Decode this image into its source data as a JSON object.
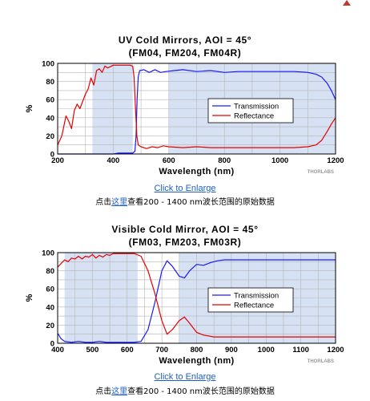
{
  "page": {
    "top_arrow_icon": "triangle-up-icon",
    "accent_color": "#c0392b"
  },
  "charts": [
    {
      "title": "UV Cold Mirrors, AOI = 45°",
      "subtitle": "(FM04, FM204, FM04R)",
      "enlarge_link": "Click to Enlarge",
      "raw_prefix": "点击",
      "raw_link": "这里",
      "raw_suffix": "查看200 - 1400 nm波长范围的原始数据",
      "watermark": "THORLABS"
    },
    {
      "title": "Visible Cold Mirror, AOI = 45°",
      "subtitle": "(FM03, FM203, FM03R)",
      "enlarge_link": "Click to Enlarge",
      "raw_prefix": "点击",
      "raw_link": "这里",
      "raw_suffix": "查看200 - 1400 nm波长范围的原始数据",
      "watermark": "THORLABS"
    }
  ],
  "chart_data": [
    {
      "type": "line",
      "title": "UV Cold Mirrors, AOI = 45°",
      "subtitle": "(FM04, FM204, FM04R)",
      "xlabel": "Wavelength (nm)",
      "ylabel": "%",
      "xlim": [
        200,
        1200
      ],
      "ylim": [
        0,
        100
      ],
      "xticks": [
        200,
        400,
        600,
        800,
        1000,
        1200
      ],
      "yticks": [
        0,
        20,
        40,
        60,
        80,
        100
      ],
      "grid": true,
      "legend_position": "center-right",
      "shaded_bands": [
        [
          325,
          470
        ],
        [
          600,
          1200
        ]
      ],
      "series": [
        {
          "name": "Transmission",
          "color": "#1a1aff",
          "points": [
            [
              200,
              0
            ],
            [
              300,
              0
            ],
            [
              350,
              0
            ],
            [
              400,
              0
            ],
            [
              420,
              1
            ],
            [
              450,
              1
            ],
            [
              470,
              1
            ],
            [
              478,
              3
            ],
            [
              482,
              20
            ],
            [
              486,
              60
            ],
            [
              490,
              85
            ],
            [
              495,
              92
            ],
            [
              510,
              93
            ],
            [
              530,
              90
            ],
            [
              550,
              93
            ],
            [
              570,
              90
            ],
            [
              590,
              91
            ],
            [
              620,
              92
            ],
            [
              650,
              93
            ],
            [
              700,
              91
            ],
            [
              750,
              92
            ],
            [
              800,
              90
            ],
            [
              850,
              91
            ],
            [
              900,
              91
            ],
            [
              950,
              91
            ],
            [
              1000,
              91
            ],
            [
              1050,
              91
            ],
            [
              1100,
              90
            ],
            [
              1130,
              88
            ],
            [
              1150,
              85
            ],
            [
              1170,
              78
            ],
            [
              1185,
              70
            ],
            [
              1200,
              60
            ]
          ]
        },
        {
          "name": "Reflectance",
          "color": "#e60000",
          "points": [
            [
              200,
              10
            ],
            [
              215,
              20
            ],
            [
              230,
              42
            ],
            [
              240,
              36
            ],
            [
              250,
              28
            ],
            [
              260,
              48
            ],
            [
              270,
              55
            ],
            [
              280,
              50
            ],
            [
              290,
              58
            ],
            [
              300,
              66
            ],
            [
              310,
              72
            ],
            [
              320,
              84
            ],
            [
              330,
              76
            ],
            [
              340,
              92
            ],
            [
              350,
              94
            ],
            [
              360,
              90
            ],
            [
              370,
              97
            ],
            [
              380,
              95
            ],
            [
              400,
              98
            ],
            [
              430,
              98
            ],
            [
              460,
              98
            ],
            [
              470,
              97
            ],
            [
              475,
              85
            ],
            [
              480,
              50
            ],
            [
              485,
              20
            ],
            [
              490,
              10
            ],
            [
              500,
              8
            ],
            [
              520,
              6
            ],
            [
              540,
              8
            ],
            [
              560,
              7
            ],
            [
              580,
              9
            ],
            [
              600,
              8
            ],
            [
              650,
              7
            ],
            [
              700,
              8
            ],
            [
              750,
              7
            ],
            [
              800,
              7
            ],
            [
              850,
              7
            ],
            [
              900,
              7
            ],
            [
              950,
              7
            ],
            [
              1000,
              7
            ],
            [
              1050,
              7
            ],
            [
              1100,
              8
            ],
            [
              1130,
              10
            ],
            [
              1150,
              15
            ],
            [
              1170,
              25
            ],
            [
              1185,
              33
            ],
            [
              1200,
              40
            ]
          ]
        }
      ]
    },
    {
      "type": "line",
      "title": "Visible Cold Mirror, AOI = 45°",
      "subtitle": "(FM03, FM203, FM03R)",
      "xlabel": "Wavelength (nm)",
      "ylabel": "%",
      "xlim": [
        400,
        1200
      ],
      "ylim": [
        0,
        100
      ],
      "xticks": [
        400,
        500,
        600,
        700,
        800,
        900,
        1000,
        1100,
        1200
      ],
      "yticks": [
        0,
        20,
        40,
        60,
        80,
        100
      ],
      "grid": true,
      "legend_position": "center-right",
      "shaded_bands": [
        [
          420,
          630
        ],
        [
          750,
          1200
        ]
      ],
      "series": [
        {
          "name": "Transmission",
          "color": "#1a1aff",
          "points": [
            [
              400,
              11
            ],
            [
              410,
              5
            ],
            [
              420,
              2
            ],
            [
              440,
              1
            ],
            [
              460,
              2
            ],
            [
              480,
              1
            ],
            [
              500,
              1
            ],
            [
              520,
              2
            ],
            [
              540,
              1
            ],
            [
              560,
              1
            ],
            [
              580,
              1
            ],
            [
              600,
              1
            ],
            [
              620,
              1
            ],
            [
              640,
              2
            ],
            [
              660,
              15
            ],
            [
              680,
              45
            ],
            [
              700,
              80
            ],
            [
              715,
              91
            ],
            [
              730,
              85
            ],
            [
              750,
              74
            ],
            [
              765,
              72
            ],
            [
              780,
              80
            ],
            [
              800,
              87
            ],
            [
              820,
              86
            ],
            [
              840,
              89
            ],
            [
              860,
              91
            ],
            [
              880,
              92
            ],
            [
              900,
              92
            ],
            [
              950,
              92
            ],
            [
              1000,
              92
            ],
            [
              1100,
              92
            ],
            [
              1200,
              92
            ]
          ]
        },
        {
          "name": "Reflectance",
          "color": "#e60000",
          "points": [
            [
              400,
              84
            ],
            [
              410,
              88
            ],
            [
              420,
              92
            ],
            [
              430,
              90
            ],
            [
              440,
              94
            ],
            [
              450,
              93
            ],
            [
              460,
              96
            ],
            [
              470,
              93
            ],
            [
              480,
              96
            ],
            [
              490,
              95
            ],
            [
              500,
              98
            ],
            [
              510,
              94
            ],
            [
              520,
              97
            ],
            [
              530,
              95
            ],
            [
              540,
              98
            ],
            [
              550,
              97
            ],
            [
              560,
              99
            ],
            [
              580,
              99
            ],
            [
              600,
              99
            ],
            [
              620,
              99
            ],
            [
              640,
              96
            ],
            [
              660,
              80
            ],
            [
              680,
              55
            ],
            [
              700,
              25
            ],
            [
              715,
              10
            ],
            [
              730,
              15
            ],
            [
              750,
              25
            ],
            [
              765,
              29
            ],
            [
              780,
              22
            ],
            [
              800,
              12
            ],
            [
              820,
              9
            ],
            [
              850,
              7
            ],
            [
              900,
              7
            ],
            [
              950,
              7
            ],
            [
              1000,
              7
            ],
            [
              1100,
              7
            ],
            [
              1200,
              7
            ]
          ]
        }
      ]
    }
  ]
}
